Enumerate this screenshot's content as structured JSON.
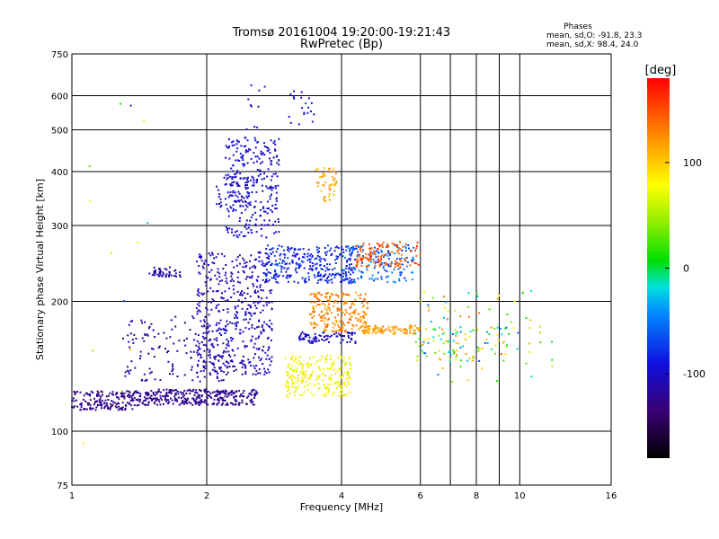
{
  "chart_data": {
    "type": "scatter",
    "title": "Tromsø 20161004 19:20:00-19:21:43",
    "subtitle": "RwPretec (Bp)",
    "xlabel": "Frequency [MHz]",
    "ylabel": "Stationary phase Virtual Height [km]",
    "x_scale": "log",
    "y_scale": "log",
    "xlim": [
      1,
      16
    ],
    "ylim": [
      75,
      750
    ],
    "x_ticks": [
      1,
      2,
      4,
      6,
      8,
      10,
      16
    ],
    "x_tick_labels": [
      "1",
      "2",
      "4",
      "6",
      "8",
      "10",
      "16"
    ],
    "y_ticks": [
      75,
      100,
      200,
      300,
      400,
      500,
      600,
      750
    ],
    "y_tick_labels": [
      "75",
      "100",
      "200",
      "300",
      "400",
      "500",
      "600",
      "750"
    ],
    "grid": true,
    "colorbar": {
      "label": "[deg]",
      "range": [
        -180,
        180
      ],
      "ticks": [
        100,
        0,
        -100
      ],
      "tick_labels": [
        "100",
        "0",
        "-100"
      ]
    },
    "stats": {
      "heading": "Phases",
      "line1": "mean, sd,O: -91.8, 23.3",
      "line2": "mean, sd,X:  98.4, 24.0"
    },
    "clusters": [
      {
        "x": [
          1.0,
          1.4
        ],
        "y": [
          112,
          124
        ],
        "phase": [
          -135,
          -118
        ],
        "n": 170
      },
      {
        "x": [
          1.4,
          2.6
        ],
        "y": [
          115,
          125
        ],
        "phase": [
          -130,
          -115
        ],
        "n": 320
      },
      {
        "x": [
          1.5,
          1.75
        ],
        "y": [
          228,
          240
        ],
        "phase": [
          -118,
          -108
        ],
        "n": 45
      },
      {
        "x": [
          1.3,
          2.2
        ],
        "y": [
          130,
          185
        ],
        "phase": [
          -125,
          -108
        ],
        "n": 140
      },
      {
        "x": [
          1.9,
          2.8
        ],
        "y": [
          135,
          260
        ],
        "phase": [
          -118,
          -95
        ],
        "n": 480
      },
      {
        "x": [
          2.2,
          2.9
        ],
        "y": [
          280,
          480
        ],
        "phase": [
          -108,
          -90
        ],
        "n": 260
      },
      {
        "x": [
          2.1,
          2.6
        ],
        "y": [
          330,
          400
        ],
        "phase": [
          -110,
          -98
        ],
        "n": 60
      },
      {
        "x": [
          2.7,
          4.3
        ],
        "y": [
          220,
          270
        ],
        "phase": [
          -100,
          -65
        ],
        "n": 300
      },
      {
        "x": [
          4.0,
          5.8
        ],
        "y": [
          220,
          270
        ],
        "phase": [
          -80,
          -35
        ],
        "n": 150
      },
      {
        "x": [
          3.2,
          4.3
        ],
        "y": [
          160,
          170
        ],
        "phase": [
          -110,
          -95
        ],
        "n": 80
      },
      {
        "x": [
          3.0,
          4.2
        ],
        "y": [
          120,
          150
        ],
        "phase": [
          60,
          95
        ],
        "n": 220
      },
      {
        "x": [
          3.4,
          4.6
        ],
        "y": [
          170,
          210
        ],
        "phase": [
          110,
          145
        ],
        "n": 220
      },
      {
        "x": [
          3.5,
          3.9
        ],
        "y": [
          340,
          410
        ],
        "phase": [
          100,
          130
        ],
        "n": 45
      },
      {
        "x": [
          4.4,
          6.0
        ],
        "y": [
          168,
          176
        ],
        "phase": [
          105,
          130
        ],
        "n": 90
      },
      {
        "x": [
          4.3,
          6.0
        ],
        "y": [
          240,
          275
        ],
        "phase": [
          130,
          165
        ],
        "n": 120
      },
      {
        "x": [
          5.8,
          9.5
        ],
        "y": [
          145,
          175
        ],
        "phase": [
          -70,
          130
        ],
        "n": 90
      },
      {
        "x": [
          6.0,
          12.0
        ],
        "y": [
          130,
          215
        ],
        "phase": [
          -60,
          150
        ],
        "n": 70
      },
      {
        "x": [
          3.0,
          3.6
        ],
        "y": [
          500,
          620
        ],
        "phase": [
          -100,
          -80
        ],
        "n": 20
      },
      {
        "x": [
          2.4,
          2.7
        ],
        "y": [
          500,
          640
        ],
        "phase": [
          -110,
          -90
        ],
        "n": 10
      },
      {
        "x": [
          1.05,
          1.5
        ],
        "y": [
          85,
          580
        ],
        "phase": [
          -120,
          120
        ],
        "n": 15
      }
    ]
  }
}
